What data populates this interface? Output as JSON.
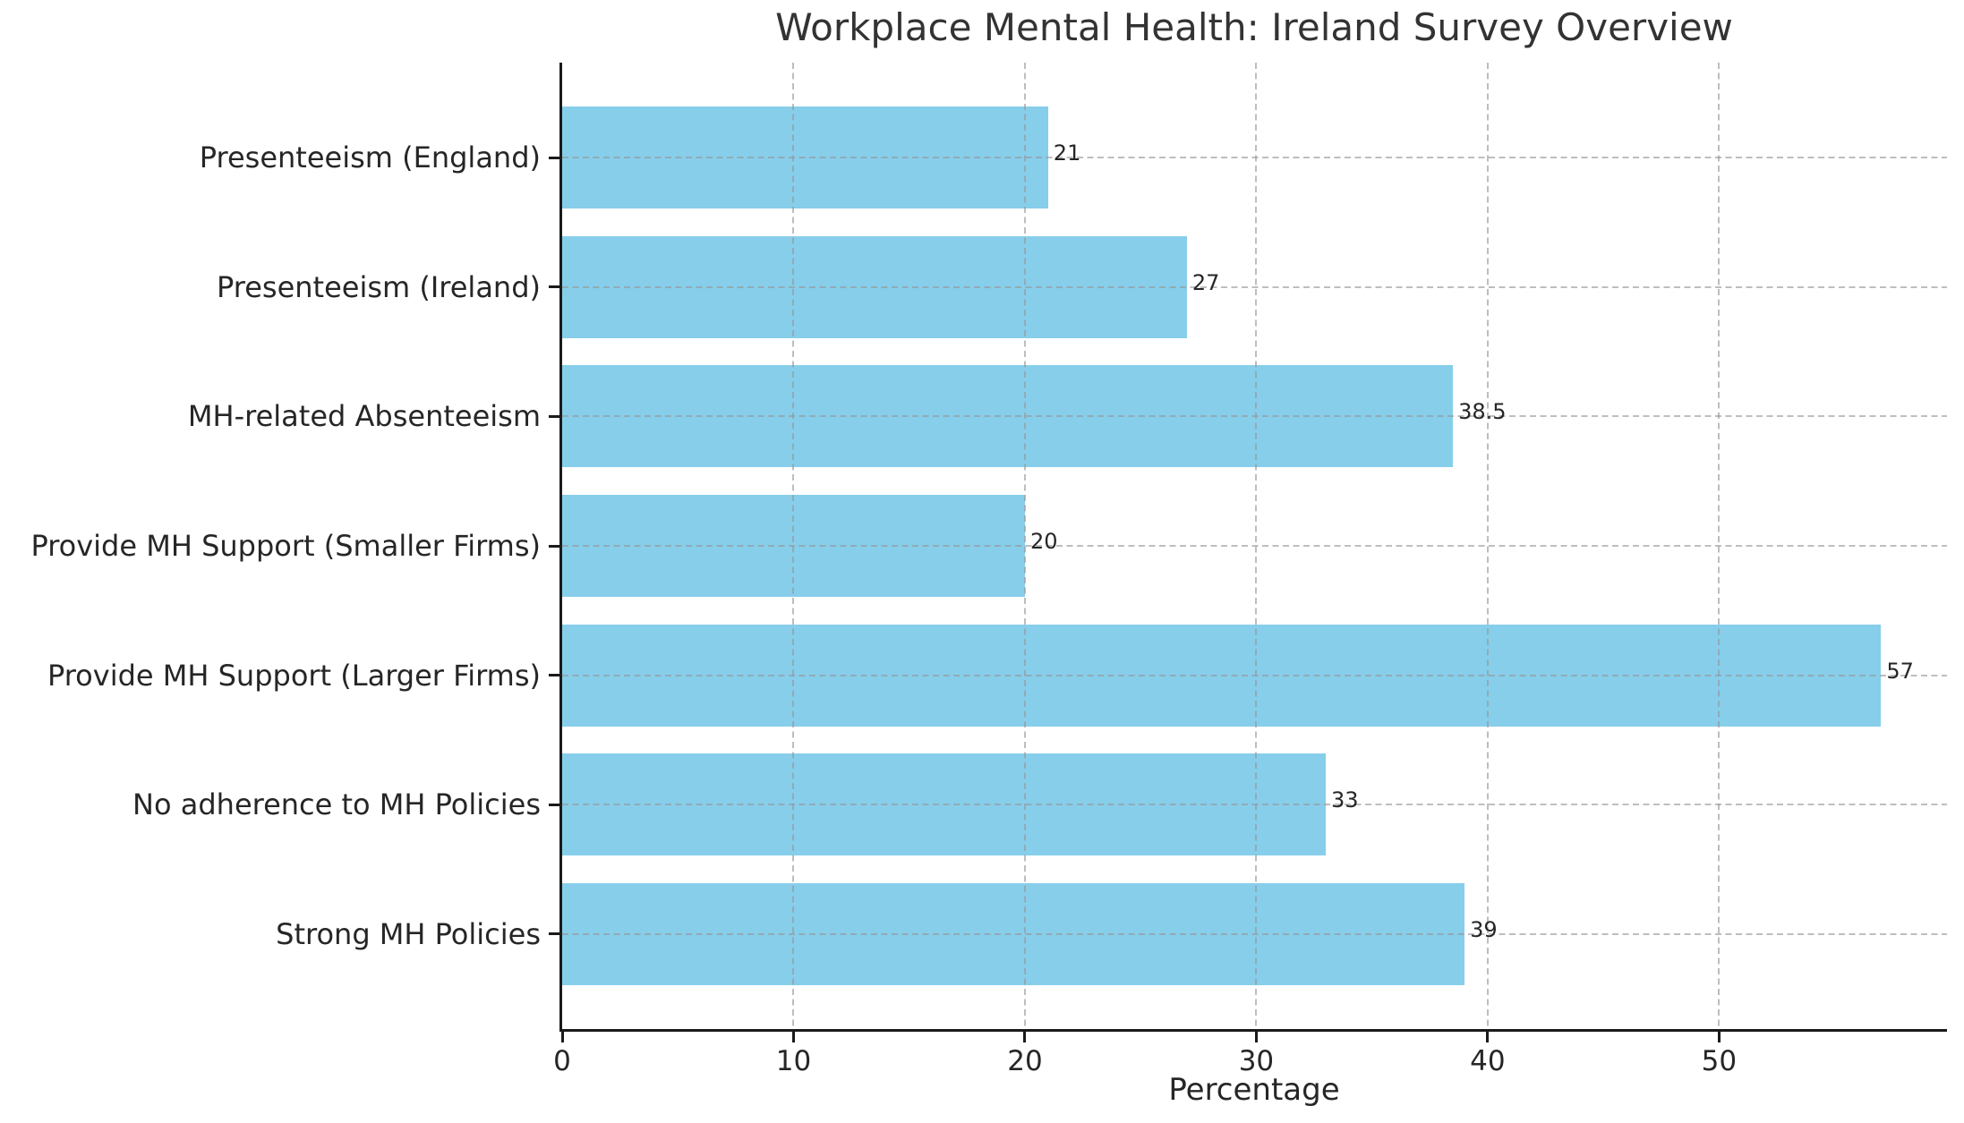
{
  "chart_data": {
    "type": "bar",
    "orientation": "horizontal",
    "title": "Workplace Mental Health: Ireland Survey Overview",
    "xlabel": "Percentage",
    "ylabel": "",
    "categories": [
      "Presenteeism (England)",
      "Presenteeism (Ireland)",
      "MH-related Absenteeism",
      "Provide MH Support (Smaller Firms)",
      "Provide MH Support (Larger Firms)",
      "No adherence to MH Policies",
      "Strong MH Policies"
    ],
    "values": [
      21,
      27,
      38.5,
      20,
      57,
      33,
      39
    ],
    "value_labels": [
      "21",
      "27",
      "38.5",
      "20",
      "57",
      "33",
      "39"
    ],
    "xticks": [
      0,
      10,
      20,
      30,
      40,
      50
    ],
    "xtick_labels": [
      "0",
      "10",
      "20",
      "30",
      "40",
      "50"
    ],
    "xlim": [
      0,
      59.85
    ],
    "bar_height_fraction": 0.79,
    "grid": "both-axes dashed, drawn above bars",
    "legend_position": "none",
    "colors": {
      "bar": "#87CEEB",
      "grid": "#c9c9c9",
      "axis": "#1a1a1a",
      "text": "#262626",
      "title": "#333333"
    }
  }
}
